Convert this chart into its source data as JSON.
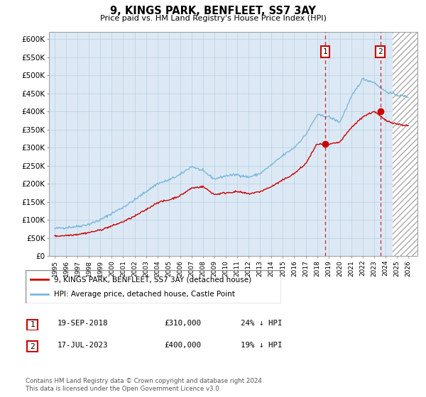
{
  "title": "9, KINGS PARK, BENFLEET, SS7 3AY",
  "subtitle": "Price paid vs. HM Land Registry's House Price Index (HPI)",
  "ylim": [
    0,
    620000
  ],
  "yticks": [
    0,
    50000,
    100000,
    150000,
    200000,
    250000,
    300000,
    350000,
    400000,
    450000,
    500000,
    550000,
    600000
  ],
  "ytick_labels": [
    "£0",
    "£50K",
    "£100K",
    "£150K",
    "£200K",
    "£250K",
    "£300K",
    "£350K",
    "£400K",
    "£450K",
    "£500K",
    "£550K",
    "£600K"
  ],
  "hpi_color": "#7ab8d9",
  "price_color": "#cc0000",
  "vline1_x": 2018.72,
  "vline2_x": 2023.54,
  "marker1_x": 2018.72,
  "marker1_y": 310000,
  "marker2_x": 2023.54,
  "marker2_y": 400000,
  "legend_label_red": "9, KINGS PARK, BENFLEET, SS7 3AY (detached house)",
  "legend_label_blue": "HPI: Average price, detached house, Castle Point",
  "table_row1": [
    "1",
    "19-SEP-2018",
    "£310,000",
    "24% ↓ HPI"
  ],
  "table_row2": [
    "2",
    "17-JUL-2023",
    "£400,000",
    "19% ↓ HPI"
  ],
  "footer": "Contains HM Land Registry data © Crown copyright and database right 2024.\nThis data is licensed under the Open Government Licence v3.0.",
  "background_color": "#ffffff",
  "plot_bg_color": "#dce9f5",
  "grid_color": "#b8cfe0",
  "hatch_start": 2024.6,
  "xlim_left": 1994.5,
  "xlim_right": 2026.8
}
